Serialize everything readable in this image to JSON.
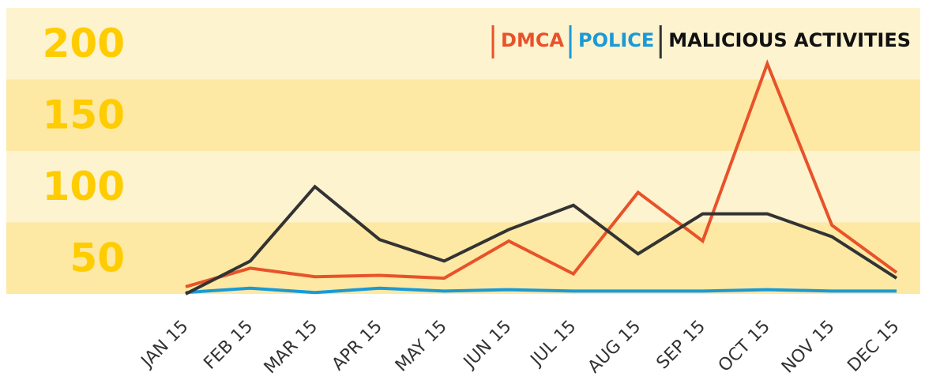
{
  "chart_data": {
    "type": "line",
    "categories": [
      "JAN 15",
      "FEB 15",
      "MAR 15",
      "APR 15",
      "MAY 15",
      "JUN 15",
      "JUL 15",
      "AUG 15",
      "SEP 15",
      "OCT 15",
      "NOV 15",
      "DEC 15"
    ],
    "series": [
      {
        "name": "DMCA",
        "color": "#e8522a",
        "values": [
          5,
          18,
          12,
          13,
          11,
          37,
          14,
          71,
          37,
          161,
          48,
          15
        ]
      },
      {
        "name": "POLICE",
        "color": "#1a9ad6",
        "values": [
          1,
          4,
          1,
          4,
          2,
          3,
          2,
          2,
          2,
          3,
          2,
          2
        ]
      },
      {
        "name": "MALICIOUS ACTIVITIES",
        "color": "#333333",
        "values": [
          0,
          23,
          75,
          38,
          23,
          45,
          62,
          28,
          56,
          56,
          40,
          11
        ]
      }
    ],
    "ylim": [
      0,
      200
    ],
    "yticks": [
      50,
      100,
      150,
      200
    ],
    "band_colors": [
      "#fde9a3",
      "#fdf3cf"
    ],
    "legend": "top-right"
  }
}
